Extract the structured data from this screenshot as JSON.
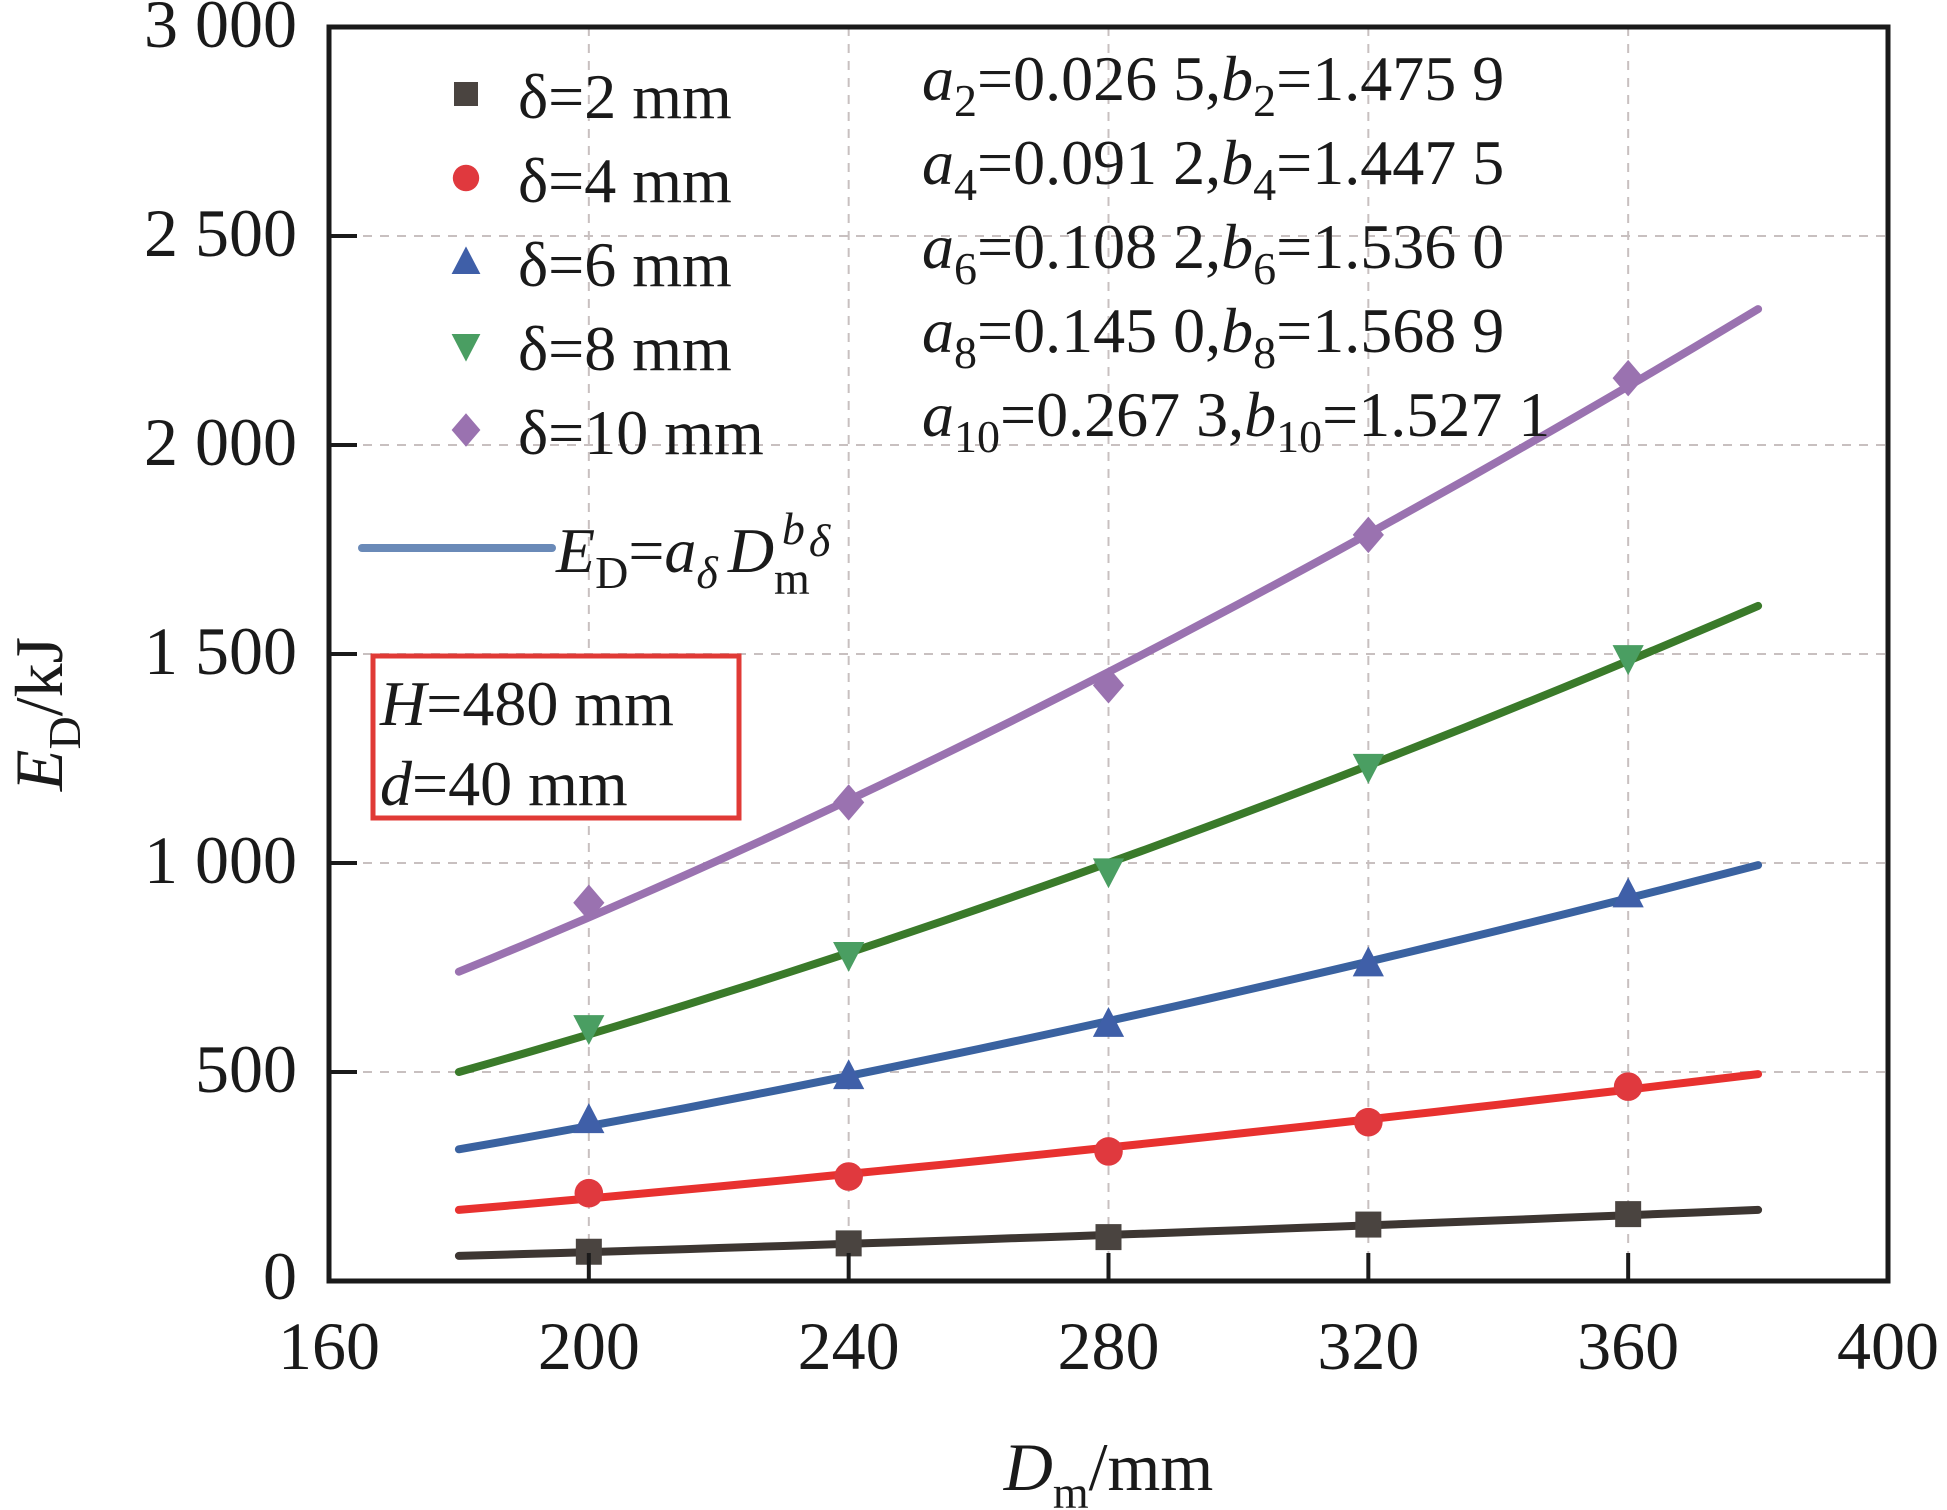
{
  "chart_data": {
    "type": "scatter",
    "title": "",
    "xlabel": "D_m/mm",
    "xlabel_parts": {
      "main": "D",
      "sub": "m",
      "unit": "/mm"
    },
    "ylabel": "E_D/kJ",
    "ylabel_parts": {
      "main": "E",
      "sub": "D",
      "unit": "/kJ"
    },
    "xlim": [
      160,
      400
    ],
    "ylim": [
      0,
      3000
    ],
    "xticks": [
      160,
      200,
      240,
      280,
      320,
      360,
      400
    ],
    "xtick_labels": [
      "160",
      "200",
      "240",
      "280",
      "320",
      "360",
      "400"
    ],
    "yticks": [
      0,
      500,
      1000,
      1500,
      2000,
      2500,
      3000
    ],
    "ytick_labels": [
      "0",
      "500",
      "1 000",
      "1 500",
      "2 000",
      "2 500",
      "3 000"
    ],
    "grid": true,
    "x": [
      200,
      240,
      280,
      320,
      360
    ],
    "series": [
      {
        "name": "δ=2 mm",
        "delta": "2",
        "marker": "square",
        "color": "#4a4440",
        "line_color": "#3d3632",
        "values": [
          70,
          90,
          105,
          135,
          160
        ],
        "fit": {
          "x": [
            180,
            380
          ],
          "a": 0.0265,
          "b": 1.4759,
          "endpoints": [
            60,
            170
          ]
        }
      },
      {
        "name": "δ=4 mm",
        "delta": "4",
        "marker": "circle",
        "color": "#e0393e",
        "line_color": "#e8312f",
        "values": [
          210,
          250,
          310,
          380,
          465
        ],
        "fit": {
          "x": [
            180,
            380
          ],
          "a": 0.0912,
          "b": 1.4475,
          "endpoints": [
            170,
            495
          ]
        }
      },
      {
        "name": "δ=6 mm",
        "delta": "6",
        "marker": "triangle-up",
        "color": "#3f5fa8",
        "line_color": "#3a62a0",
        "values": [
          385,
          490,
          615,
          760,
          925
        ],
        "fit": {
          "x": [
            180,
            380
          ],
          "a": 0.1082,
          "b": 1.536,
          "endpoints": [
            315,
            995
          ]
        }
      },
      {
        "name": "δ=8 mm",
        "delta": "8",
        "marker": "triangle-down",
        "color": "#4a9e62",
        "line_color": "#3a7a2a",
        "values": [
          605,
          780,
          980,
          1230,
          1490
        ],
        "fit": {
          "x": [
            180,
            380
          ],
          "a": 0.145,
          "b": 1.5689,
          "endpoints": [
            500,
            1615
          ]
        }
      },
      {
        "name": "δ=10 mm",
        "delta": "10",
        "marker": "diamond",
        "color": "#9a72b0",
        "line_color": "#9a72b0",
        "values": [
          905,
          1145,
          1425,
          1785,
          2160
        ],
        "fit": {
          "x": [
            180,
            380
          ],
          "a": 0.2673,
          "b": 1.5271,
          "endpoints": [
            740,
            2325
          ]
        }
      }
    ],
    "legend": {
      "placement": "top-left",
      "entries": [
        "δ=2 mm",
        "δ=4 mm",
        "δ=6 mm",
        "δ=8 mm",
        "δ=10 mm"
      ],
      "fit_entry": {
        "text": "E_D=a_δ D_m^b_δ",
        "color": "#6a8ab8"
      }
    },
    "annotations": {
      "params": [
        {
          "a_sub": "2",
          "a_val": "=0.026 5,",
          "b_sub": "2",
          "b_val": "=1.475 9"
        },
        {
          "a_sub": "4",
          "a_val": "=0.091 2,",
          "b_sub": "4",
          "b_val": "=1.447 5"
        },
        {
          "a_sub": "6",
          "a_val": "=0.108 2,",
          "b_sub": "6",
          "b_val": "=1.536 0"
        },
        {
          "a_sub": "8",
          "a_val": "=0.145 0,",
          "b_sub": "8",
          "b_val": "=1.568 9"
        },
        {
          "a_sub": "10",
          "a_val": "=0.267 3,",
          "b_sub": "10",
          "b_val": "=1.527 1"
        }
      ],
      "box": {
        "lines": [
          {
            "var": "H",
            "val": "=480 mm"
          },
          {
            "var": "d",
            "val": "=40 mm"
          }
        ],
        "border_color": "#e03a36"
      }
    }
  },
  "labels": {
    "delta": "δ",
    "a": "a",
    "b": "b",
    "fit_E": "E",
    "fit_D_sub": "D",
    "fit_eq": "=",
    "fit_a": "a",
    "fit_delta": "δ",
    "fit_Dm": "D",
    "fit_m": "m",
    "fit_b": "b",
    "fit_bdelta": "δ"
  }
}
